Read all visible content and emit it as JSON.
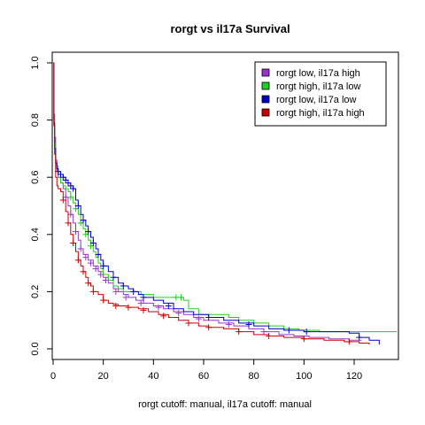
{
  "chart_data": {
    "type": "line",
    "subtype": "kaplan-meier step",
    "title": "rorgt vs il17a Survival",
    "xlabel": "rorgt cutoff: manual, il17a cutoff: manual",
    "ylabel": "",
    "xlim": [
      0,
      137
    ],
    "ylim": [
      0,
      1
    ],
    "x_ticks": [
      0,
      20,
      40,
      60,
      80,
      100,
      120
    ],
    "y_ticks": [
      0.0,
      0.2,
      0.4,
      0.6,
      0.8,
      1.0
    ],
    "x_tick_labels": [
      "0",
      "20",
      "40",
      "60",
      "80",
      "100",
      "120"
    ],
    "y_tick_labels": [
      "0.0",
      "0.2",
      "0.4",
      "0.6",
      "0.8",
      "1.0"
    ],
    "grid": false,
    "legend_position": "top-right",
    "series": [
      {
        "name": "rorgt low, il17a high",
        "color": "#9933cc",
        "points": [
          [
            0,
            1.0
          ],
          [
            0.3,
            0.82
          ],
          [
            0.6,
            0.74
          ],
          [
            1,
            0.66
          ],
          [
            1.5,
            0.62
          ],
          [
            2,
            0.6
          ],
          [
            3,
            0.58
          ],
          [
            4,
            0.56
          ],
          [
            5,
            0.53
          ],
          [
            6,
            0.5
          ],
          [
            7,
            0.47
          ],
          [
            8,
            0.44
          ],
          [
            9,
            0.41
          ],
          [
            10,
            0.38
          ],
          [
            11,
            0.35
          ],
          [
            12,
            0.33
          ],
          [
            14,
            0.31
          ],
          [
            16,
            0.29
          ],
          [
            18,
            0.27
          ],
          [
            20,
            0.25
          ],
          [
            22,
            0.23
          ],
          [
            24,
            0.21
          ],
          [
            26,
            0.2
          ],
          [
            28,
            0.19
          ],
          [
            30,
            0.18
          ],
          [
            33,
            0.17
          ],
          [
            36,
            0.16
          ],
          [
            40,
            0.15
          ],
          [
            44,
            0.14
          ],
          [
            48,
            0.13
          ],
          [
            52,
            0.12
          ],
          [
            56,
            0.11
          ],
          [
            60,
            0.1
          ],
          [
            66,
            0.09
          ],
          [
            72,
            0.08
          ],
          [
            78,
            0.07
          ],
          [
            84,
            0.06
          ],
          [
            90,
            0.05
          ],
          [
            96,
            0.045
          ],
          [
            102,
            0.04
          ],
          [
            110,
            0.035
          ],
          [
            118,
            0.03
          ],
          [
            123,
            0.03
          ]
        ],
        "censor": [
          [
            5,
            0.53
          ],
          [
            7,
            0.47
          ],
          [
            9,
            0.41
          ],
          [
            11,
            0.35
          ],
          [
            13,
            0.32
          ],
          [
            15,
            0.3
          ],
          [
            17,
            0.28
          ],
          [
            19,
            0.26
          ],
          [
            21,
            0.24
          ],
          [
            25,
            0.2
          ],
          [
            29,
            0.18
          ],
          [
            35,
            0.16
          ],
          [
            42,
            0.145
          ],
          [
            50,
            0.125
          ],
          [
            58,
            0.105
          ],
          [
            70,
            0.085
          ],
          [
            84,
            0.06
          ]
        ]
      },
      {
        "name": "rorgt high, il17a low",
        "color": "#22cc22",
        "points": [
          [
            0,
            1.0
          ],
          [
            0.3,
            0.8
          ],
          [
            0.6,
            0.72
          ],
          [
            1,
            0.64
          ],
          [
            2,
            0.6
          ],
          [
            3,
            0.58
          ],
          [
            4,
            0.57
          ],
          [
            5,
            0.56
          ],
          [
            6,
            0.55
          ],
          [
            7,
            0.53
          ],
          [
            8,
            0.51
          ],
          [
            9,
            0.49
          ],
          [
            10,
            0.47
          ],
          [
            11,
            0.44
          ],
          [
            12,
            0.42
          ],
          [
            13,
            0.4
          ],
          [
            14,
            0.38
          ],
          [
            15,
            0.36
          ],
          [
            16,
            0.34
          ],
          [
            17,
            0.32
          ],
          [
            18,
            0.3
          ],
          [
            19,
            0.28
          ],
          [
            20,
            0.26
          ],
          [
            22,
            0.24
          ],
          [
            24,
            0.22
          ],
          [
            26,
            0.21
          ],
          [
            28,
            0.2
          ],
          [
            30,
            0.2
          ],
          [
            32,
            0.2
          ],
          [
            35,
            0.19
          ],
          [
            40,
            0.18
          ],
          [
            44,
            0.18
          ],
          [
            48,
            0.18
          ],
          [
            52,
            0.17
          ],
          [
            54,
            0.14
          ],
          [
            58,
            0.12
          ],
          [
            62,
            0.12
          ],
          [
            66,
            0.12
          ],
          [
            70,
            0.11
          ],
          [
            74,
            0.1
          ],
          [
            80,
            0.09
          ],
          [
            86,
            0.08
          ],
          [
            92,
            0.07
          ],
          [
            98,
            0.065
          ],
          [
            106,
            0.06
          ],
          [
            114,
            0.06
          ],
          [
            122,
            0.06
          ],
          [
            130,
            0.06
          ],
          [
            137,
            0.06
          ]
        ],
        "censor": [
          [
            7,
            0.53
          ],
          [
            9,
            0.49
          ],
          [
            11,
            0.44
          ],
          [
            13,
            0.4
          ],
          [
            15,
            0.36
          ],
          [
            49,
            0.18
          ],
          [
            51,
            0.18
          ]
        ]
      },
      {
        "name": "rorgt low, il17a low",
        "color": "#0000cc",
        "points": [
          [
            0,
            1.0
          ],
          [
            0.3,
            0.79
          ],
          [
            0.6,
            0.7
          ],
          [
            1,
            0.65
          ],
          [
            1.5,
            0.63
          ],
          [
            2,
            0.62
          ],
          [
            3,
            0.61
          ],
          [
            4,
            0.6
          ],
          [
            5,
            0.59
          ],
          [
            6,
            0.58
          ],
          [
            7,
            0.57
          ],
          [
            8,
            0.56
          ],
          [
            9,
            0.52
          ],
          [
            10,
            0.5
          ],
          [
            11,
            0.47
          ],
          [
            12,
            0.45
          ],
          [
            13,
            0.43
          ],
          [
            14,
            0.41
          ],
          [
            15,
            0.39
          ],
          [
            16,
            0.37
          ],
          [
            17,
            0.35
          ],
          [
            18,
            0.33
          ],
          [
            19,
            0.31
          ],
          [
            20,
            0.29
          ],
          [
            22,
            0.27
          ],
          [
            24,
            0.25
          ],
          [
            26,
            0.23
          ],
          [
            28,
            0.22
          ],
          [
            30,
            0.21
          ],
          [
            32,
            0.2
          ],
          [
            34,
            0.19
          ],
          [
            36,
            0.18
          ],
          [
            40,
            0.17
          ],
          [
            44,
            0.16
          ],
          [
            48,
            0.14
          ],
          [
            52,
            0.13
          ],
          [
            56,
            0.12
          ],
          [
            62,
            0.11
          ],
          [
            68,
            0.1
          ],
          [
            74,
            0.09
          ],
          [
            80,
            0.08
          ],
          [
            86,
            0.07
          ],
          [
            92,
            0.065
          ],
          [
            100,
            0.06
          ],
          [
            110,
            0.06
          ],
          [
            118,
            0.055
          ],
          [
            122,
            0.04
          ],
          [
            126,
            0.03
          ],
          [
            130,
            0.015
          ]
        ],
        "censor": [
          [
            2,
            0.62
          ],
          [
            3,
            0.61
          ],
          [
            4,
            0.6
          ],
          [
            5,
            0.59
          ],
          [
            6,
            0.58
          ],
          [
            7,
            0.57
          ],
          [
            8,
            0.56
          ],
          [
            10,
            0.5
          ],
          [
            12,
            0.45
          ],
          [
            14,
            0.41
          ],
          [
            16,
            0.37
          ],
          [
            18,
            0.33
          ],
          [
            20,
            0.29
          ],
          [
            24,
            0.25
          ],
          [
            28,
            0.22
          ],
          [
            32,
            0.2
          ],
          [
            36,
            0.18
          ],
          [
            46,
            0.15
          ],
          [
            62,
            0.11
          ],
          [
            78,
            0.085
          ],
          [
            94,
            0.065
          ],
          [
            101,
            0.06
          ],
          [
            122,
            0.04
          ]
        ]
      },
      {
        "name": "rorgt high, il17a high",
        "color": "#cc0000",
        "points": [
          [
            0,
            1.0
          ],
          [
            0.3,
            0.78
          ],
          [
            0.6,
            0.68
          ],
          [
            1,
            0.6
          ],
          [
            1.5,
            0.57
          ],
          [
            2,
            0.56
          ],
          [
            3,
            0.55
          ],
          [
            4,
            0.52
          ],
          [
            5,
            0.48
          ],
          [
            6,
            0.44
          ],
          [
            7,
            0.4
          ],
          [
            8,
            0.37
          ],
          [
            9,
            0.34
          ],
          [
            10,
            0.31
          ],
          [
            11,
            0.29
          ],
          [
            12,
            0.27
          ],
          [
            13,
            0.25
          ],
          [
            14,
            0.23
          ],
          [
            15,
            0.22
          ],
          [
            16,
            0.2
          ],
          [
            18,
            0.19
          ],
          [
            20,
            0.17
          ],
          [
            22,
            0.16
          ],
          [
            24,
            0.155
          ],
          [
            26,
            0.15
          ],
          [
            28,
            0.15
          ],
          [
            30,
            0.145
          ],
          [
            34,
            0.14
          ],
          [
            38,
            0.13
          ],
          [
            42,
            0.12
          ],
          [
            46,
            0.11
          ],
          [
            50,
            0.1
          ],
          [
            54,
            0.09
          ],
          [
            58,
            0.08
          ],
          [
            62,
            0.075
          ],
          [
            68,
            0.07
          ],
          [
            74,
            0.06
          ],
          [
            80,
            0.05
          ],
          [
            86,
            0.045
          ],
          [
            92,
            0.04
          ],
          [
            100,
            0.035
          ],
          [
            108,
            0.03
          ],
          [
            116,
            0.025
          ],
          [
            122,
            0.02
          ],
          [
            126,
            0.015
          ]
        ],
        "censor": [
          [
            4,
            0.52
          ],
          [
            6,
            0.44
          ],
          [
            8,
            0.37
          ],
          [
            10,
            0.31
          ],
          [
            12,
            0.27
          ],
          [
            14,
            0.23
          ],
          [
            16,
            0.2
          ],
          [
            20,
            0.17
          ],
          [
            25,
            0.15
          ],
          [
            30,
            0.145
          ],
          [
            36,
            0.135
          ],
          [
            44,
            0.115
          ],
          [
            54,
            0.09
          ],
          [
            62,
            0.075
          ],
          [
            74,
            0.06
          ],
          [
            86,
            0.045
          ],
          [
            100,
            0.035
          ],
          [
            118,
            0.025
          ]
        ]
      }
    ]
  }
}
